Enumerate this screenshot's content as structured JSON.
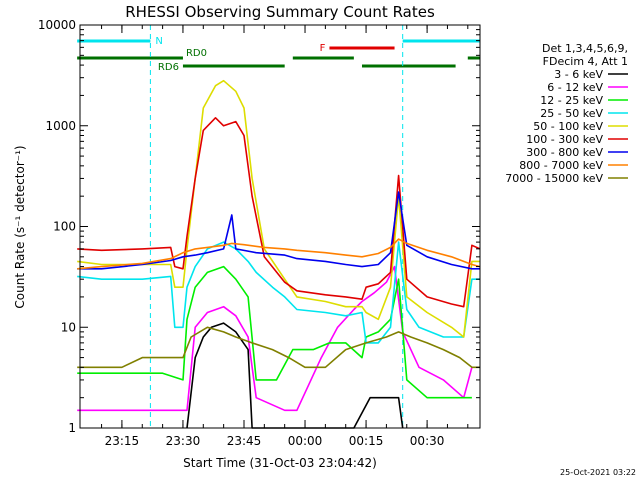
{
  "chart_data": {
    "type": "line",
    "title": "RHESSI Observing Summary Count Rates",
    "xlabel": "Start Time (31-Oct-03 23:04:42)",
    "ylabel": "Count Rate (s⁻¹ detector⁻¹)",
    "yscale": "log",
    "ylim": [
      1,
      10000
    ],
    "xlim": [
      "23:04:42",
      "00:43:00"
    ],
    "x_ticks": [
      "23:15",
      "23:30",
      "23:45",
      "00:00",
      "00:15",
      "00:30"
    ],
    "y_ticks": [
      "1",
      "10",
      "100",
      "1000",
      "10000"
    ],
    "grid": false,
    "legend_position": "right",
    "legend_header": [
      "Det 1,3,4,5,6,9,",
      "FDecim 4, Att 1"
    ],
    "footer": "25-Oct-2021 03:22",
    "flags": [
      {
        "label": "N",
        "color": "#00e5ee",
        "segments": [
          [
            "23:04",
            "23:22"
          ],
          [
            "00:24",
            "00:43"
          ]
        ]
      },
      {
        "label": "F",
        "color": "#e00000",
        "segments": [
          [
            "00:06",
            "00:22"
          ]
        ]
      },
      {
        "label": "RD0",
        "color": "#007000",
        "segments": [
          [
            "23:04",
            "23:30"
          ],
          [
            "23:57",
            "00:12"
          ],
          [
            "00:40",
            "00:43"
          ]
        ]
      },
      {
        "label": "RD6",
        "color": "#007000",
        "segments": [
          [
            "23:30",
            "23:55"
          ],
          [
            "00:14",
            "00:37"
          ]
        ]
      }
    ],
    "series": [
      {
        "name": "3 - 6 keV",
        "color": "#000000",
        "points": [
          [
            "23:31",
            1
          ],
          [
            "23:33",
            5
          ],
          [
            "23:35",
            8
          ],
          [
            "23:37",
            10
          ],
          [
            "23:40",
            11
          ],
          [
            "23:43",
            9
          ],
          [
            "23:46",
            6
          ],
          [
            "23:47",
            1
          ],
          [
            "00:12",
            1
          ],
          [
            "00:16",
            2
          ],
          [
            "00:20",
            2
          ],
          [
            "00:23",
            2
          ],
          [
            "00:24",
            1
          ]
        ]
      },
      {
        "name": "6 - 12 keV",
        "color": "#ff00ff",
        "points": [
          [
            "23:04",
            1.5
          ],
          [
            "23:15",
            1.5
          ],
          [
            "23:20",
            1.5
          ],
          [
            "23:27",
            1.5
          ],
          [
            "23:31",
            1.5
          ],
          [
            "23:33",
            10
          ],
          [
            "23:36",
            14
          ],
          [
            "23:40",
            16
          ],
          [
            "23:43",
            13
          ],
          [
            "23:46",
            8
          ],
          [
            "23:48",
            2
          ],
          [
            "23:55",
            1.5
          ],
          [
            "23:58",
            1.5
          ],
          [
            "00:04",
            5
          ],
          [
            "00:08",
            10
          ],
          [
            "00:12",
            15
          ],
          [
            "00:14",
            18
          ],
          [
            "00:17",
            22
          ],
          [
            "00:20",
            28
          ],
          [
            "00:22",
            40
          ],
          [
            "00:24",
            9
          ],
          [
            "00:28",
            4
          ],
          [
            "00:34",
            3
          ],
          [
            "00:39",
            2
          ],
          [
            "00:41",
            4
          ]
        ]
      },
      {
        "name": "12 - 25 keV",
        "color": "#00ee00",
        "points": [
          [
            "23:04",
            3.5
          ],
          [
            "23:15",
            3.5
          ],
          [
            "23:25",
            3.5
          ],
          [
            "23:30",
            3
          ],
          [
            "23:31",
            12
          ],
          [
            "23:33",
            25
          ],
          [
            "23:36",
            35
          ],
          [
            "23:40",
            40
          ],
          [
            "23:43",
            30
          ],
          [
            "23:46",
            20
          ],
          [
            "23:48",
            3
          ],
          [
            "23:53",
            3
          ],
          [
            "23:57",
            6
          ],
          [
            "00:02",
            6
          ],
          [
            "00:06",
            7
          ],
          [
            "00:10",
            7
          ],
          [
            "00:14",
            5
          ],
          [
            "00:15",
            8
          ],
          [
            "00:18",
            9
          ],
          [
            "00:21",
            12
          ],
          [
            "00:23",
            30
          ],
          [
            "00:25",
            3
          ],
          [
            "00:30",
            2
          ],
          [
            "00:40",
            2
          ],
          [
            "00:41",
            2
          ]
        ]
      },
      {
        "name": "25 - 50 keV",
        "color": "#00e5ee",
        "points": [
          [
            "23:04",
            32
          ],
          [
            "23:10",
            30
          ],
          [
            "23:20",
            30
          ],
          [
            "23:27",
            32
          ],
          [
            "23:28",
            10
          ],
          [
            "23:30",
            10
          ],
          [
            "23:31",
            25
          ],
          [
            "23:33",
            40
          ],
          [
            "23:36",
            60
          ],
          [
            "23:40",
            70
          ],
          [
            "23:43",
            60
          ],
          [
            "23:46",
            45
          ],
          [
            "23:48",
            35
          ],
          [
            "23:52",
            25
          ],
          [
            "23:55",
            20
          ],
          [
            "23:58",
            15
          ],
          [
            "00:05",
            14
          ],
          [
            "00:10",
            13
          ],
          [
            "00:14",
            14
          ],
          [
            "00:15",
            7
          ],
          [
            "00:18",
            7
          ],
          [
            "00:21",
            10
          ],
          [
            "00:23",
            70
          ],
          [
            "00:25",
            15
          ],
          [
            "00:28",
            10
          ],
          [
            "00:34",
            8
          ],
          [
            "00:39",
            8
          ],
          [
            "00:41",
            30
          ],
          [
            "00:43",
            30
          ]
        ]
      },
      {
        "name": "50 - 100 keV",
        "color": "#dddd00",
        "points": [
          [
            "23:04",
            45
          ],
          [
            "23:10",
            42
          ],
          [
            "23:20",
            42
          ],
          [
            "23:27",
            42
          ],
          [
            "23:28",
            25
          ],
          [
            "23:30",
            25
          ],
          [
            "23:31",
            60
          ],
          [
            "23:33",
            300
          ],
          [
            "23:35",
            1500
          ],
          [
            "23:38",
            2500
          ],
          [
            "23:40",
            2800
          ],
          [
            "23:43",
            2200
          ],
          [
            "23:45",
            1500
          ],
          [
            "23:47",
            300
          ],
          [
            "23:50",
            60
          ],
          [
            "23:55",
            30
          ],
          [
            "23:58",
            20
          ],
          [
            "00:05",
            18
          ],
          [
            "00:10",
            16
          ],
          [
            "00:14",
            16
          ],
          [
            "00:15",
            14
          ],
          [
            "00:18",
            12
          ],
          [
            "00:21",
            25
          ],
          [
            "00:23",
            200
          ],
          [
            "00:25",
            20
          ],
          [
            "00:30",
            14
          ],
          [
            "00:36",
            10
          ],
          [
            "00:39",
            8
          ],
          [
            "00:41",
            45
          ],
          [
            "00:43",
            45
          ]
        ]
      },
      {
        "name": "100 - 300 keV",
        "color": "#e00000",
        "points": [
          [
            "23:04",
            60
          ],
          [
            "23:10",
            58
          ],
          [
            "23:20",
            60
          ],
          [
            "23:27",
            62
          ],
          [
            "23:28",
            40
          ],
          [
            "23:30",
            38
          ],
          [
            "23:31",
            80
          ],
          [
            "23:33",
            300
          ],
          [
            "23:35",
            900
          ],
          [
            "23:38",
            1200
          ],
          [
            "23:40",
            1000
          ],
          [
            "23:43",
            1100
          ],
          [
            "23:45",
            800
          ],
          [
            "23:47",
            200
          ],
          [
            "23:50",
            50
          ],
          [
            "23:55",
            28
          ],
          [
            "23:58",
            23
          ],
          [
            "00:05",
            21
          ],
          [
            "00:10",
            20
          ],
          [
            "00:14",
            19
          ],
          [
            "00:15",
            25
          ],
          [
            "00:18",
            27
          ],
          [
            "00:21",
            35
          ],
          [
            "00:23",
            320
          ],
          [
            "00:25",
            30
          ],
          [
            "00:30",
            20
          ],
          [
            "00:36",
            17
          ],
          [
            "00:39",
            16
          ],
          [
            "00:41",
            65
          ],
          [
            "00:43",
            60
          ]
        ]
      },
      {
        "name": "300 - 800 keV",
        "color": "#0000ee",
        "points": [
          [
            "23:04",
            38
          ],
          [
            "23:10",
            38
          ],
          [
            "23:20",
            42
          ],
          [
            "23:27",
            46
          ],
          [
            "23:30",
            50
          ],
          [
            "23:33",
            52
          ],
          [
            "23:36",
            55
          ],
          [
            "23:40",
            60
          ],
          [
            "23:42",
            130
          ],
          [
            "23:43",
            60
          ],
          [
            "23:48",
            55
          ],
          [
            "23:55",
            52
          ],
          [
            "23:58",
            48
          ],
          [
            "00:05",
            45
          ],
          [
            "00:10",
            42
          ],
          [
            "00:14",
            40
          ],
          [
            "00:18",
            42
          ],
          [
            "00:21",
            55
          ],
          [
            "00:23",
            220
          ],
          [
            "00:25",
            65
          ],
          [
            "00:30",
            50
          ],
          [
            "00:36",
            42
          ],
          [
            "00:41",
            38
          ],
          [
            "00:43",
            38
          ]
        ]
      },
      {
        "name": "800 - 7000 keV",
        "color": "#ff8000",
        "points": [
          [
            "23:04",
            38
          ],
          [
            "23:10",
            40
          ],
          [
            "23:20",
            43
          ],
          [
            "23:27",
            48
          ],
          [
            "23:30",
            55
          ],
          [
            "23:33",
            60
          ],
          [
            "23:36",
            62
          ],
          [
            "23:40",
            65
          ],
          [
            "23:42",
            68
          ],
          [
            "23:45",
            66
          ],
          [
            "23:50",
            62
          ],
          [
            "23:55",
            60
          ],
          [
            "23:58",
            58
          ],
          [
            "00:05",
            55
          ],
          [
            "00:10",
            52
          ],
          [
            "00:14",
            50
          ],
          [
            "00:18",
            54
          ],
          [
            "00:21",
            62
          ],
          [
            "00:23",
            75
          ],
          [
            "00:25",
            68
          ],
          [
            "00:30",
            58
          ],
          [
            "00:36",
            50
          ],
          [
            "00:41",
            42
          ],
          [
            "00:43",
            40
          ]
        ]
      },
      {
        "name": "7000 - 15000 keV",
        "color": "#808000",
        "points": [
          [
            "23:04",
            4
          ],
          [
            "23:08",
            4
          ],
          [
            "23:15",
            4
          ],
          [
            "23:20",
            5
          ],
          [
            "23:25",
            5
          ],
          [
            "23:28",
            5
          ],
          [
            "23:30",
            5
          ],
          [
            "23:32",
            8
          ],
          [
            "23:36",
            10
          ],
          [
            "23:40",
            9
          ],
          [
            "23:43",
            8
          ],
          [
            "23:47",
            7
          ],
          [
            "23:52",
            6
          ],
          [
            "23:56",
            5
          ],
          [
            "00:00",
            4
          ],
          [
            "00:05",
            4
          ],
          [
            "00:10",
            6
          ],
          [
            "00:15",
            7
          ],
          [
            "00:20",
            8
          ],
          [
            "00:23",
            9
          ],
          [
            "00:26",
            8
          ],
          [
            "00:30",
            7
          ],
          [
            "00:34",
            6
          ],
          [
            "00:38",
            5
          ],
          [
            "00:41",
            4
          ],
          [
            "00:43",
            4
          ]
        ]
      }
    ]
  }
}
